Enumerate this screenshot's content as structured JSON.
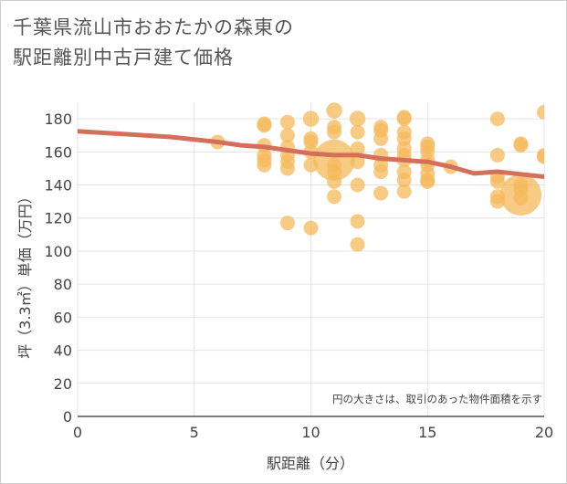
{
  "title_line1": "千葉県流山市おおたかの森東の",
  "title_line2": "駅距離別中古戸建て価格",
  "chart_data": {
    "type": "scatter",
    "title": "千葉県流山市おおたかの森東の駅距離別中古戸建て価格",
    "xlabel": "駅距離（分）",
    "ylabel": "坪（3.3㎡）単価（万円）",
    "xlim": [
      0,
      20
    ],
    "ylim": [
      0,
      190
    ],
    "xticks": [
      "0",
      "5",
      "10",
      "15",
      "20"
    ],
    "yticks": [
      "0",
      "20",
      "40",
      "60",
      "80",
      "100",
      "120",
      "140",
      "160",
      "180"
    ],
    "note": "円の大きさは、取引のあった物件面積を示す",
    "bubble_color": "#f5b95c",
    "line_color": "#d4705a",
    "bubbles": [
      {
        "x": 6,
        "y": 166,
        "s": 1
      },
      {
        "x": 8,
        "y": 177,
        "s": 1
      },
      {
        "x": 8,
        "y": 176,
        "s": 1
      },
      {
        "x": 8,
        "y": 164,
        "s": 1
      },
      {
        "x": 8,
        "y": 158,
        "s": 1
      },
      {
        "x": 8,
        "y": 155,
        "s": 1
      },
      {
        "x": 8,
        "y": 152,
        "s": 1
      },
      {
        "x": 9,
        "y": 178,
        "s": 1
      },
      {
        "x": 9,
        "y": 170,
        "s": 1
      },
      {
        "x": 9,
        "y": 163,
        "s": 1
      },
      {
        "x": 9,
        "y": 158,
        "s": 1
      },
      {
        "x": 9,
        "y": 154,
        "s": 1
      },
      {
        "x": 9,
        "y": 150,
        "s": 1
      },
      {
        "x": 9,
        "y": 117,
        "s": 1
      },
      {
        "x": 10,
        "y": 180,
        "s": 1.2
      },
      {
        "x": 10,
        "y": 168,
        "s": 1
      },
      {
        "x": 10,
        "y": 166,
        "s": 1
      },
      {
        "x": 10,
        "y": 160,
        "s": 1
      },
      {
        "x": 10,
        "y": 152,
        "s": 1
      },
      {
        "x": 10,
        "y": 114,
        "s": 1
      },
      {
        "x": 11,
        "y": 185,
        "s": 1.2
      },
      {
        "x": 11,
        "y": 175,
        "s": 1
      },
      {
        "x": 11,
        "y": 172,
        "s": 1
      },
      {
        "x": 11,
        "y": 155,
        "s": 8
      },
      {
        "x": 11,
        "y": 152,
        "s": 1
      },
      {
        "x": 11,
        "y": 148,
        "s": 1
      },
      {
        "x": 11,
        "y": 142,
        "s": 1
      },
      {
        "x": 11,
        "y": 133,
        "s": 1
      },
      {
        "x": 12,
        "y": 180,
        "s": 1.2
      },
      {
        "x": 12,
        "y": 172,
        "s": 1
      },
      {
        "x": 12,
        "y": 162,
        "s": 1
      },
      {
        "x": 12,
        "y": 154,
        "s": 1
      },
      {
        "x": 12,
        "y": 140,
        "s": 1
      },
      {
        "x": 12,
        "y": 118,
        "s": 1
      },
      {
        "x": 12,
        "y": 104,
        "s": 1
      },
      {
        "x": 13,
        "y": 175,
        "s": 1
      },
      {
        "x": 13,
        "y": 173,
        "s": 1
      },
      {
        "x": 13,
        "y": 168,
        "s": 1
      },
      {
        "x": 13,
        "y": 158,
        "s": 1
      },
      {
        "x": 13,
        "y": 152,
        "s": 1
      },
      {
        "x": 13,
        "y": 148,
        "s": 1
      },
      {
        "x": 13,
        "y": 135,
        "s": 1
      },
      {
        "x": 14,
        "y": 181,
        "s": 1
      },
      {
        "x": 14,
        "y": 180,
        "s": 1
      },
      {
        "x": 14,
        "y": 172,
        "s": 1
      },
      {
        "x": 14,
        "y": 168,
        "s": 1
      },
      {
        "x": 14,
        "y": 162,
        "s": 1
      },
      {
        "x": 14,
        "y": 158,
        "s": 1
      },
      {
        "x": 14,
        "y": 155,
        "s": 1
      },
      {
        "x": 14,
        "y": 148,
        "s": 1
      },
      {
        "x": 14,
        "y": 143,
        "s": 1
      },
      {
        "x": 14,
        "y": 136,
        "s": 1
      },
      {
        "x": 15,
        "y": 165,
        "s": 1
      },
      {
        "x": 15,
        "y": 163,
        "s": 1
      },
      {
        "x": 15,
        "y": 160,
        "s": 1
      },
      {
        "x": 15,
        "y": 155,
        "s": 1
      },
      {
        "x": 15,
        "y": 152,
        "s": 1
      },
      {
        "x": 15,
        "y": 147,
        "s": 1
      },
      {
        "x": 15,
        "y": 143,
        "s": 1
      },
      {
        "x": 15,
        "y": 142,
        "s": 1
      },
      {
        "x": 16,
        "y": 151,
        "s": 1
      },
      {
        "x": 18,
        "y": 180,
        "s": 1
      },
      {
        "x": 18,
        "y": 158,
        "s": 1
      },
      {
        "x": 18,
        "y": 145,
        "s": 1
      },
      {
        "x": 18,
        "y": 142,
        "s": 1
      },
      {
        "x": 18,
        "y": 133,
        "s": 1
      },
      {
        "x": 18,
        "y": 130,
        "s": 1
      },
      {
        "x": 19,
        "y": 165,
        "s": 1
      },
      {
        "x": 19,
        "y": 164,
        "s": 1
      },
      {
        "x": 19,
        "y": 140,
        "s": 1
      },
      {
        "x": 19,
        "y": 137,
        "s": 1
      },
      {
        "x": 19,
        "y": 134,
        "s": 8
      },
      {
        "x": 19,
        "y": 132,
        "s": 1
      },
      {
        "x": 20,
        "y": 184,
        "s": 1
      },
      {
        "x": 20,
        "y": 158,
        "s": 1
      },
      {
        "x": 20,
        "y": 157,
        "s": 1
      }
    ],
    "trend_line": [
      {
        "x": 0,
        "y": 172.5
      },
      {
        "x": 4,
        "y": 169
      },
      {
        "x": 6,
        "y": 166
      },
      {
        "x": 7,
        "y": 164
      },
      {
        "x": 8,
        "y": 163
      },
      {
        "x": 9,
        "y": 161
      },
      {
        "x": 10,
        "y": 159
      },
      {
        "x": 11,
        "y": 158
      },
      {
        "x": 12,
        "y": 158
      },
      {
        "x": 13,
        "y": 156
      },
      {
        "x": 14,
        "y": 155
      },
      {
        "x": 15,
        "y": 154
      },
      {
        "x": 16,
        "y": 151
      },
      {
        "x": 17,
        "y": 147
      },
      {
        "x": 18,
        "y": 148
      },
      {
        "x": 19,
        "y": 146.5
      },
      {
        "x": 20,
        "y": 145
      }
    ]
  }
}
